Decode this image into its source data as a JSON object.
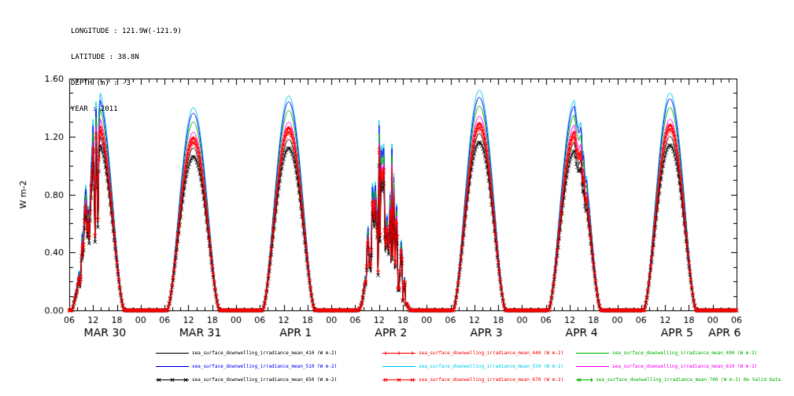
{
  "meta": {
    "longitude": "LONGITUDE : 121.9W(-121.9)",
    "latitude": "LATITUDE : 38.8N",
    "depth": "DEPTH (m) : -3",
    "year": "YEAR : 2011"
  },
  "chart_data": {
    "type": "line",
    "title": "",
    "xlabel": "",
    "ylabel": "W m-2",
    "ylim": [
      0,
      1.6
    ],
    "ytick_labels": [
      "0.00",
      "0.40",
      "0.80",
      "1.20",
      "1.60"
    ],
    "x_start_hour": 6,
    "x_end_hour": 174,
    "x_tick_labels": [
      "06",
      "12",
      "18",
      "00",
      "06",
      "12",
      "18",
      "00",
      "06",
      "12",
      "18",
      "00",
      "06",
      "12",
      "18",
      "00",
      "06",
      "12",
      "18",
      "00",
      "06",
      "12",
      "18",
      "00",
      "06",
      "12",
      "18",
      "00",
      "06"
    ],
    "day_labels": [
      "MAR 30",
      "MAR 31",
      "APR 1",
      "APR 2",
      "APR 3",
      "APR 4",
      "APR 5",
      "APR 6"
    ],
    "day_conditions": [
      "noisy_morning",
      "clear",
      "clear",
      "overcast_variable",
      "clear",
      "light_afternoon_noise",
      "clear"
    ],
    "grid": false,
    "legend_position": "bottom",
    "draw_order": [
      4,
      3,
      2,
      5,
      1,
      0,
      6,
      7
    ],
    "series": [
      {
        "wavelength": "410",
        "legend_label": "sea_surface_downwelling_irradiance_mean_410 (W m-2)",
        "color": "#000000",
        "marker": "none",
        "no_data": false,
        "day_peaks": [
          1.22,
          1.12,
          1.18,
          1.14,
          1.22,
          1.16,
          1.2
        ]
      },
      {
        "wavelength": "440",
        "legend_label": "sea_surface_downwelling_irradiance_mean_440 (W m-2)",
        "color": "#ff0000",
        "marker": "plus",
        "no_data": false,
        "day_peaks": [
          1.29,
          1.19,
          1.26,
          1.21,
          1.29,
          1.23,
          1.28
        ]
      },
      {
        "wavelength": "490",
        "legend_label": "sea_surface_downwelling_irradiance_mean_490 (W m-2)",
        "color": "#00b400",
        "marker": "none",
        "no_data": false,
        "day_peaks": [
          1.41,
          1.3,
          1.38,
          1.32,
          1.41,
          1.35,
          1.4
        ]
      },
      {
        "wavelength": "510",
        "legend_label": "sea_surface_downwelling_irradiance_mean_510 (W m-2)",
        "color": "#0000ff",
        "marker": "none",
        "no_data": false,
        "day_peaks": [
          1.47,
          1.36,
          1.44,
          1.38,
          1.47,
          1.41,
          1.46
        ]
      },
      {
        "wavelength": "550",
        "legend_label": "sea_surface_downwelling_irradiance_mean_550 (W m-2)",
        "color": "#00ccee",
        "marker": "none",
        "no_data": false,
        "day_peaks": [
          1.52,
          1.4,
          1.48,
          1.42,
          1.52,
          1.45,
          1.5
        ]
      },
      {
        "wavelength": "610",
        "legend_label": "sea_surface_downwelling_irradiance_mean_610 (W m-2)",
        "color": "#ff00ff",
        "marker": "none",
        "no_data": false,
        "day_peaks": [
          1.34,
          1.23,
          1.3,
          1.25,
          1.34,
          1.28,
          1.32
        ]
      },
      {
        "wavelength": "650",
        "legend_label": "sea_surface_downwelling_irradiance_mean_650 (W m-2)",
        "color": "#000000",
        "marker": "x",
        "no_data": false,
        "day_peaks": [
          1.16,
          1.06,
          1.12,
          1.08,
          1.16,
          1.1,
          1.14
        ]
      },
      {
        "wavelength": "670",
        "legend_label": "sea_surface_downwelling_irradiance_mean_670 (W m-2)",
        "color": "#ff0000",
        "marker": "x",
        "no_data": false,
        "day_peaks": [
          1.26,
          1.16,
          1.23,
          1.18,
          1.26,
          1.2,
          1.25
        ]
      },
      {
        "wavelength": "700",
        "legend_label": "sea_surface_downwelling_irradiance_mean_700 (W m-2) No Valid Data",
        "color": "#00b400",
        "marker": "x",
        "no_data": true,
        "day_peaks": []
      }
    ]
  }
}
